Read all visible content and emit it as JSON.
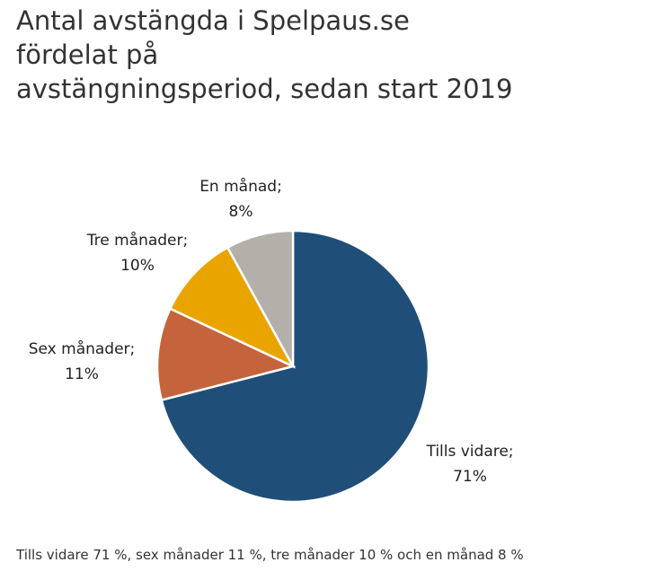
{
  "title_lines": [
    "Antal avstängda i Spelpaus.se",
    "fördelat på",
    "avstängningsperiod, sedan start 2019"
  ],
  "caption": "Tills vidare 71 %, sex månader 11 %, tre månader 10 % och en månad 8 %",
  "chart_data": {
    "type": "pie",
    "title": "Antal avstängda i Spelpaus.se fördelat på avstängningsperiod, sedan start 2019",
    "start_angle": "12 o'clock, clockwise",
    "slices": [
      {
        "label": "Tills vidare",
        "value": 71,
        "label_text": [
          "Tills vidare;",
          "71%"
        ],
        "color": "#1f4e79"
      },
      {
        "label": "Sex månader",
        "value": 11,
        "label_text": [
          "Sex månader;",
          "11%"
        ],
        "color": "#c5643c"
      },
      {
        "label": "Tre månader",
        "value": 10,
        "label_text": [
          "Tre månader;",
          "10%"
        ],
        "color": "#eaa400"
      },
      {
        "label": "En månad",
        "value": 8,
        "label_text": [
          "En månad;",
          "8%"
        ],
        "color": "#b3afa9"
      }
    ]
  }
}
